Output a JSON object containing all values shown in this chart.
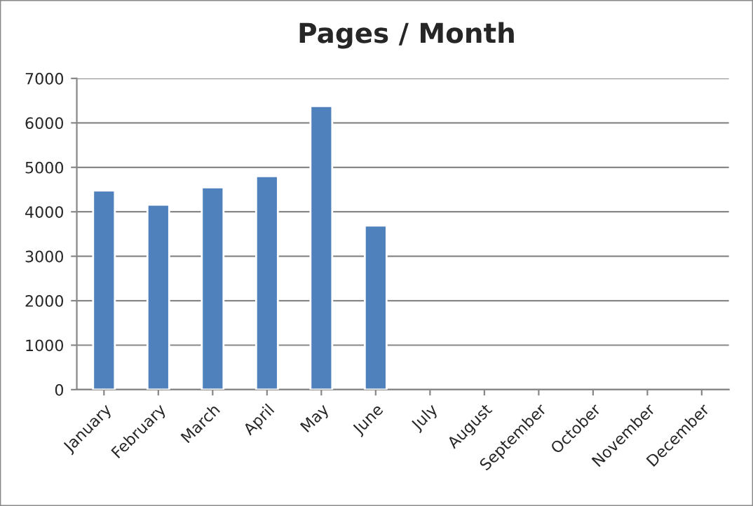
{
  "chart_data": {
    "type": "bar",
    "title": "Pages / Month",
    "categories": [
      "January",
      "February",
      "March",
      "April",
      "May",
      "June",
      "July",
      "August",
      "September",
      "October",
      "November",
      "December"
    ],
    "values": [
      4480,
      4160,
      4550,
      4800,
      6380,
      3690,
      null,
      null,
      null,
      null,
      null,
      null
    ],
    "color": "#4f81bd",
    "ylim": [
      0,
      7000
    ],
    "yticks": [
      0,
      1000,
      2000,
      3000,
      4000,
      5000,
      6000,
      7000
    ],
    "grid": "y",
    "legend": false
  }
}
